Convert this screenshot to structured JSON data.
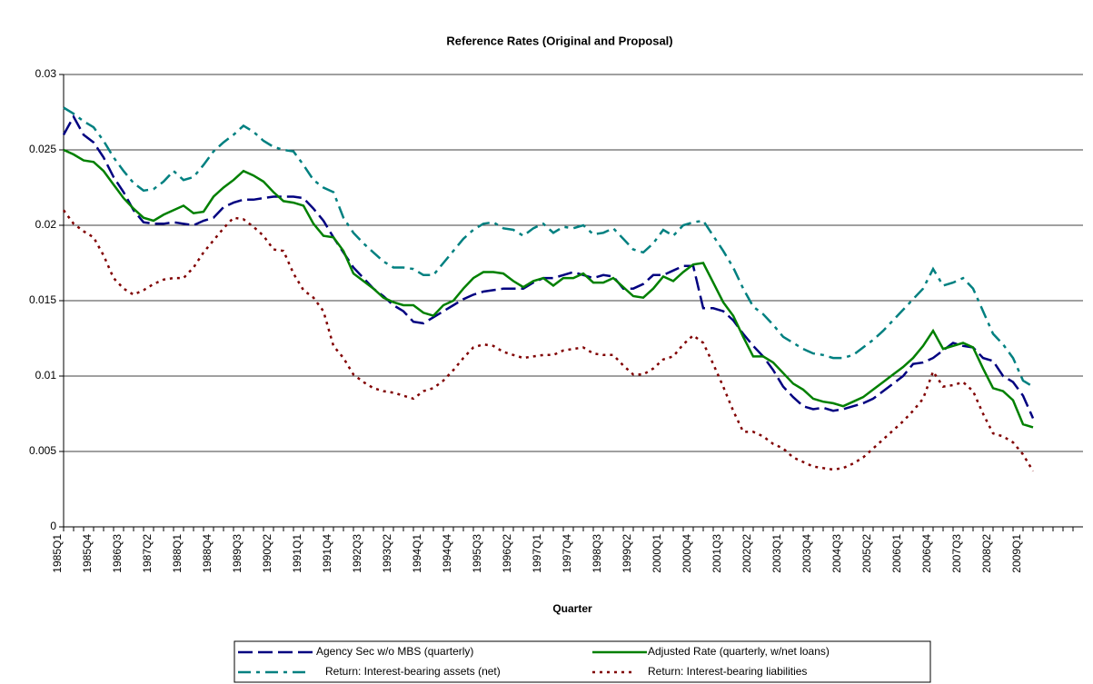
{
  "chart_data": {
    "type": "line",
    "title": "Reference Rates (Original and Proposal)",
    "x_label": "Quarter",
    "categories": [
      "1985Q1",
      null,
      null,
      "1985Q4",
      null,
      null,
      "1986Q3",
      null,
      null,
      "1987Q2",
      null,
      null,
      "1988Q1",
      null,
      null,
      "1988Q4",
      null,
      null,
      "1989Q3",
      null,
      null,
      "1990Q2",
      null,
      null,
      "1991Q1",
      null,
      null,
      "1991Q4",
      null,
      null,
      "1992Q3",
      null,
      null,
      "1993Q2",
      null,
      null,
      "1994Q1",
      null,
      null,
      "1994Q4",
      null,
      null,
      "1995Q3",
      null,
      null,
      "1996Q2",
      null,
      null,
      "1997Q1",
      null,
      null,
      "1997Q4",
      null,
      null,
      "1998Q3",
      null,
      null,
      "1999Q2",
      null,
      null,
      "2000Q1",
      null,
      null,
      "2000Q4",
      null,
      null,
      "2001Q3",
      null,
      null,
      "2002Q2",
      null,
      null,
      "2003Q1",
      null,
      null,
      "2003Q4",
      null,
      null,
      "2004Q3",
      null,
      null,
      "2005Q2",
      null,
      null,
      "2006Q1",
      null,
      null,
      "2006Q4",
      null,
      null,
      "2007Q3",
      null,
      null,
      "2008Q2",
      null,
      null,
      "2009Q1",
      null,
      null,
      null,
      null,
      null
    ],
    "series": [
      {
        "name": "Agency Sec w/o MBS (quarterly)",
        "color": "#000080",
        "dash": "dashed",
        "values": [
          0.026,
          0.0272,
          0.026,
          0.0255,
          0.0245,
          0.0232,
          0.0222,
          0.021,
          0.0202,
          0.0201,
          0.0201,
          0.0202,
          0.0201,
          0.02,
          0.0203,
          0.0205,
          0.0212,
          0.0215,
          0.0217,
          0.0217,
          0.0218,
          0.0219,
          0.0219,
          0.0219,
          0.0218,
          0.0211,
          0.0203,
          0.0192,
          0.0182,
          0.0172,
          0.0165,
          0.0158,
          0.0153,
          0.0147,
          0.0143,
          0.0136,
          0.0135,
          0.0139,
          0.0143,
          0.0147,
          0.0151,
          0.0154,
          0.0156,
          0.0157,
          0.0158,
          0.0158,
          0.0158,
          0.0162,
          0.0165,
          0.0165,
          0.0167,
          0.0169,
          0.0167,
          0.0165,
          0.0167,
          0.0166,
          0.0158,
          0.0158,
          0.0161,
          0.0167,
          0.0167,
          0.017,
          0.0173,
          0.0173,
          0.0145,
          0.0145,
          0.0143,
          0.0137,
          0.0128,
          0.012,
          0.0113,
          0.0104,
          0.0093,
          0.0086,
          0.008,
          0.0078,
          0.0079,
          0.0077,
          0.0078,
          0.008,
          0.0082,
          0.0085,
          0.009,
          0.0095,
          0.01,
          0.0108,
          0.0109,
          0.0112,
          0.0117,
          0.0122,
          0.012,
          0.0119,
          0.0112,
          0.011,
          0.01,
          0.0096,
          0.0087,
          0.0072,
          null,
          null,
          null,
          null
        ]
      },
      {
        "name": "Adjusted Rate (quarterly, w/net loans)",
        "color": "#008000",
        "dash": "solid",
        "values": [
          0.025,
          0.0247,
          0.0243,
          0.0242,
          0.0236,
          0.0227,
          0.0218,
          0.0211,
          0.0205,
          0.0203,
          0.0207,
          0.021,
          0.0213,
          0.0208,
          0.0209,
          0.0219,
          0.0225,
          0.023,
          0.0236,
          0.0233,
          0.0229,
          0.0222,
          0.0216,
          0.0215,
          0.0213,
          0.0201,
          0.0193,
          0.0192,
          0.0183,
          0.0168,
          0.0163,
          0.0158,
          0.0152,
          0.0149,
          0.0147,
          0.0147,
          0.0142,
          0.014,
          0.0147,
          0.015,
          0.0158,
          0.0165,
          0.0169,
          0.0169,
          0.0168,
          0.0163,
          0.0159,
          0.0163,
          0.0165,
          0.016,
          0.0165,
          0.0165,
          0.0168,
          0.0162,
          0.0162,
          0.0165,
          0.0159,
          0.0153,
          0.0152,
          0.0158,
          0.0166,
          0.0163,
          0.0169,
          0.0174,
          0.0175,
          0.0162,
          0.0149,
          0.014,
          0.0126,
          0.0113,
          0.0113,
          0.0109,
          0.0102,
          0.0095,
          0.0091,
          0.0085,
          0.0083,
          0.0082,
          0.008,
          0.0083,
          0.0086,
          0.0091,
          0.0096,
          0.0101,
          0.0106,
          0.0112,
          0.012,
          0.013,
          0.0118,
          0.012,
          0.0122,
          0.0119,
          0.0105,
          0.0092,
          0.009,
          0.0084,
          0.0068,
          0.0066,
          null,
          null,
          null,
          null
        ]
      },
      {
        "name": "Return: Interest-bearing assets (net)",
        "color": "#008080",
        "dash": "dashdot",
        "values": [
          0.0278,
          0.0274,
          0.0269,
          0.0265,
          0.0256,
          0.0245,
          0.0236,
          0.0228,
          0.0223,
          0.0224,
          0.0229,
          0.0236,
          0.023,
          0.0232,
          0.024,
          0.0249,
          0.0255,
          0.026,
          0.0266,
          0.0262,
          0.0256,
          0.0252,
          0.025,
          0.0249,
          0.024,
          0.023,
          0.0225,
          0.0222,
          0.0205,
          0.0195,
          0.0188,
          0.0182,
          0.0176,
          0.0172,
          0.0172,
          0.0171,
          0.0167,
          0.0167,
          0.0175,
          0.0183,
          0.0191,
          0.0197,
          0.0201,
          0.0202,
          0.0198,
          0.0197,
          0.0193,
          0.0198,
          0.0201,
          0.0195,
          0.0199,
          0.0198,
          0.02,
          0.0194,
          0.0195,
          0.0198,
          0.0191,
          0.0184,
          0.0182,
          0.0188,
          0.0197,
          0.0193,
          0.02,
          0.0202,
          0.0203,
          0.0193,
          0.0183,
          0.0172,
          0.0158,
          0.0146,
          0.0141,
          0.0134,
          0.0126,
          0.0122,
          0.0118,
          0.0115,
          0.0114,
          0.0112,
          0.0112,
          0.0114,
          0.0119,
          0.0124,
          0.013,
          0.0137,
          0.0144,
          0.0151,
          0.0158,
          0.0171,
          0.016,
          0.0162,
          0.0165,
          0.0158,
          0.0143,
          0.0128,
          0.0121,
          0.0112,
          0.0097,
          0.0093,
          null,
          null,
          null,
          null
        ]
      },
      {
        "name": "Return: Interest-bearing liabilities",
        "color": "#800000",
        "dash": "dotted",
        "values": [
          0.021,
          0.0201,
          0.0196,
          0.0192,
          0.018,
          0.0165,
          0.0158,
          0.0154,
          0.0157,
          0.0161,
          0.0164,
          0.0165,
          0.0165,
          0.0172,
          0.0182,
          0.019,
          0.0198,
          0.0205,
          0.0204,
          0.0199,
          0.0193,
          0.0184,
          0.0183,
          0.0168,
          0.0157,
          0.0152,
          0.0143,
          0.012,
          0.0112,
          0.0101,
          0.0096,
          0.0092,
          0.009,
          0.0089,
          0.0087,
          0.0085,
          0.009,
          0.0092,
          0.0097,
          0.0104,
          0.0112,
          0.0119,
          0.0121,
          0.012,
          0.0116,
          0.0114,
          0.0112,
          0.0113,
          0.0114,
          0.0114,
          0.0117,
          0.0118,
          0.0119,
          0.0115,
          0.0114,
          0.0114,
          0.0107,
          0.0101,
          0.0101,
          0.0105,
          0.0111,
          0.0113,
          0.0121,
          0.0127,
          0.0122,
          0.0108,
          0.0093,
          0.0077,
          0.0063,
          0.0063,
          0.006,
          0.0055,
          0.0052,
          0.0046,
          0.0043,
          0.004,
          0.0039,
          0.0038,
          0.0039,
          0.0042,
          0.0046,
          0.0052,
          0.0058,
          0.0064,
          0.007,
          0.0077,
          0.0085,
          0.0103,
          0.0093,
          0.0094,
          0.0096,
          0.009,
          0.0075,
          0.0062,
          0.006,
          0.0056,
          0.0048,
          0.0037,
          null,
          null,
          null,
          null
        ]
      }
    ],
    "ylim": [
      0,
      0.03
    ],
    "yticks": [
      0,
      0.005,
      0.01,
      0.015,
      0.02,
      0.025,
      0.03
    ],
    "grid": true,
    "legend": "bottom"
  }
}
